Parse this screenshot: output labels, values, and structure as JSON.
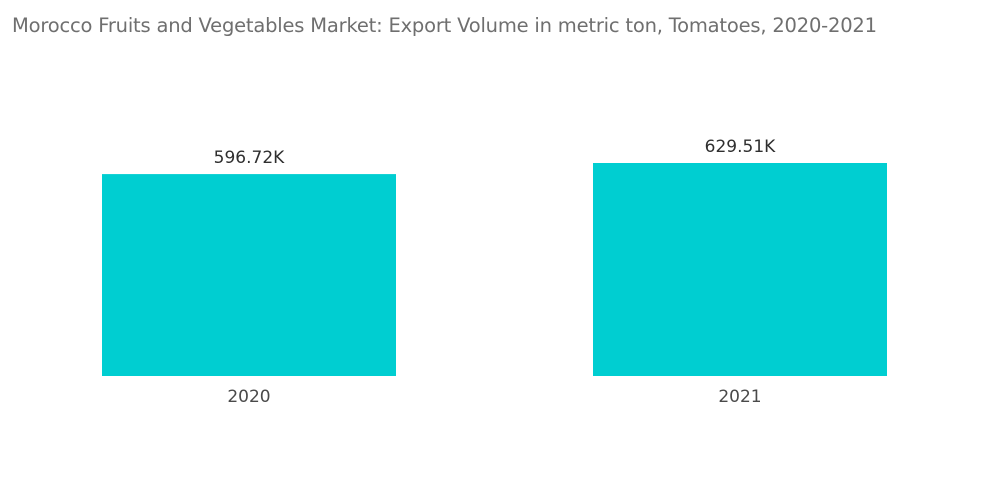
{
  "chart_data": {
    "type": "bar",
    "title": "Morocco Fruits and Vegetables Market: Export Volume in metric ton, Tomatoes, 2020-2021",
    "xlabel": "",
    "ylabel": "",
    "categories": [
      "2020",
      "2021"
    ],
    "values": [
      596720,
      629510
    ],
    "data_labels": [
      "596.72K",
      "629.51K"
    ],
    "ylim": [
      0,
      629510
    ],
    "grid": false,
    "legend": "none",
    "bar_color": "#00ced1"
  }
}
